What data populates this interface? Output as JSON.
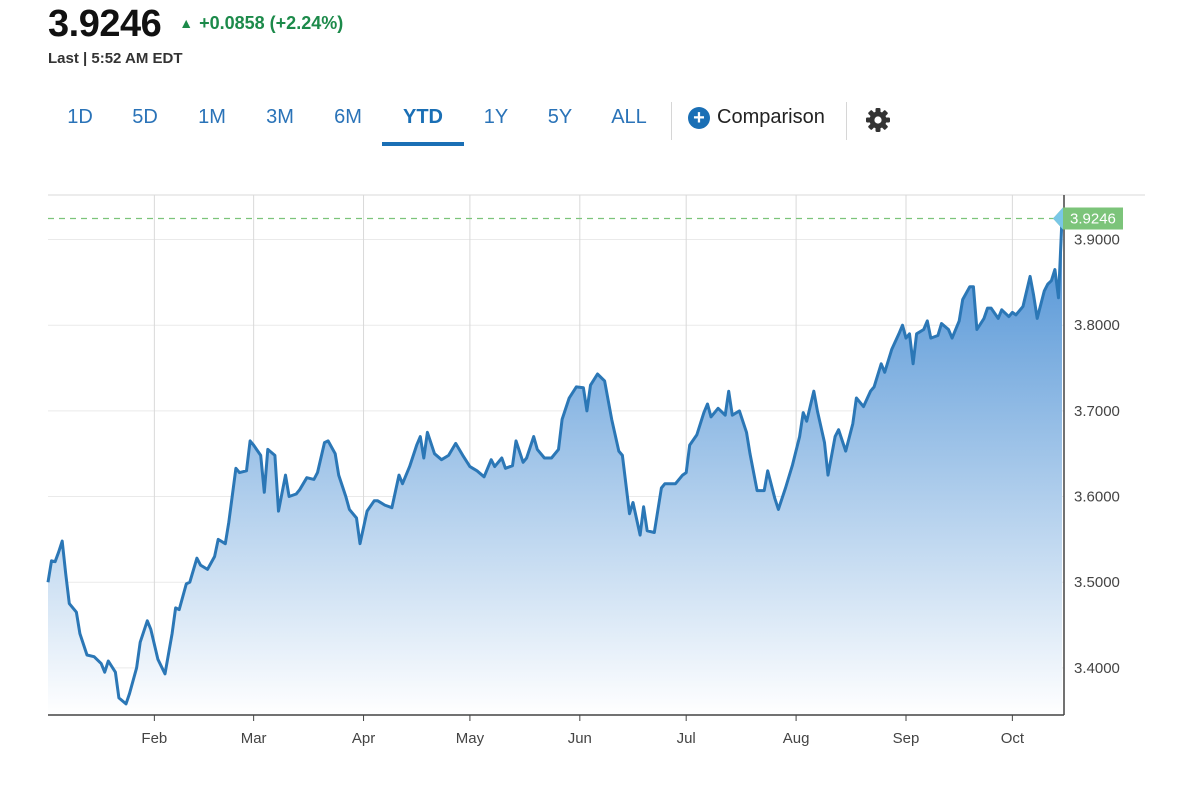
{
  "quote": {
    "price": "3.9246",
    "change": "+0.0858",
    "change_pct": "(+2.24%)",
    "last_label": "Last | 5:52 AM EDT"
  },
  "range_tabs": [
    {
      "label": "1D",
      "active": false
    },
    {
      "label": "5D",
      "active": false
    },
    {
      "label": "1M",
      "active": false
    },
    {
      "label": "3M",
      "active": false
    },
    {
      "label": "6M",
      "active": false
    },
    {
      "label": "YTD",
      "active": true
    },
    {
      "label": "1Y",
      "active": false
    },
    {
      "label": "5Y",
      "active": false
    },
    {
      "label": "ALL",
      "active": false
    }
  ],
  "comparison": {
    "label": "Comparison",
    "icon": "plus-circle-icon"
  },
  "settings": {
    "icon": "gear-icon"
  },
  "colors": {
    "accent": "#1a6fb5",
    "tab_text": "#2a73b8",
    "up_green": "#1c8a4a",
    "line": "#2b77b6",
    "area_top": "#4a8fd4",
    "area_bottom": "#ffffff",
    "last_tag": "#7cc47a",
    "grid": "#d9d9d9"
  },
  "chart_data": {
    "type": "area",
    "title": "",
    "xlabel": "",
    "ylabel": "",
    "ylim": [
      3.345,
      3.952
    ],
    "y_ticks": [
      "3.9000",
      "3.8000",
      "3.7000",
      "3.6000",
      "3.5000",
      "3.4000"
    ],
    "x_ticks": [
      "Feb",
      "Mar",
      "Apr",
      "May",
      "Jun",
      "Jul",
      "Aug",
      "Sep",
      "Oct"
    ],
    "last_value": "3.9246",
    "grid": true,
    "points": [
      [
        "Jan 2",
        3.5
      ],
      [
        "Jan 3",
        3.525
      ],
      [
        "Jan 4",
        3.524
      ],
      [
        "Jan 5",
        3.535
      ],
      [
        "Jan 6",
        3.548
      ],
      [
        "Jan 7",
        3.51
      ],
      [
        "Jan 8",
        3.475
      ],
      [
        "Jan 10",
        3.465
      ],
      [
        "Jan 11",
        3.44
      ],
      [
        "Jan 13",
        3.415
      ],
      [
        "Jan 15",
        3.413
      ],
      [
        "Jan 17",
        3.405
      ],
      [
        "Jan 18",
        3.395
      ],
      [
        "Jan 19",
        3.408
      ],
      [
        "Jan 21",
        3.395
      ],
      [
        "Jan 22",
        3.365
      ],
      [
        "Jan 24",
        3.358
      ],
      [
        "Jan 25",
        3.37
      ],
      [
        "Jan 27",
        3.4
      ],
      [
        "Jan 28",
        3.43
      ],
      [
        "Jan 30",
        3.455
      ],
      [
        "Jan 31",
        3.445
      ],
      [
        "Feb 2",
        3.41
      ],
      [
        "Feb 4",
        3.393
      ],
      [
        "Feb 6",
        3.44
      ],
      [
        "Feb 7",
        3.47
      ],
      [
        "Feb 8",
        3.468
      ],
      [
        "Feb 10",
        3.498
      ],
      [
        "Feb 11",
        3.5
      ],
      [
        "Feb 13",
        3.528
      ],
      [
        "Feb 14",
        3.52
      ],
      [
        "Feb 16",
        3.515
      ],
      [
        "Feb 18",
        3.53
      ],
      [
        "Feb 19",
        3.55
      ],
      [
        "Feb 21",
        3.545
      ],
      [
        "Feb 22",
        3.57
      ],
      [
        "Feb 24",
        3.633
      ],
      [
        "Feb 25",
        3.628
      ],
      [
        "Feb 27",
        3.63
      ],
      [
        "Feb 28",
        3.665
      ],
      [
        "Mar 1",
        3.66
      ],
      [
        "Mar 3",
        3.648
      ],
      [
        "Mar 4",
        3.605
      ],
      [
        "Mar 5",
        3.655
      ],
      [
        "Mar 7",
        3.648
      ],
      [
        "Mar 8",
        3.583
      ],
      [
        "Mar 10",
        3.625
      ],
      [
        "Mar 11",
        3.6
      ],
      [
        "Mar 13",
        3.603
      ],
      [
        "Mar 14",
        3.608
      ],
      [
        "Mar 16",
        3.622
      ],
      [
        "Mar 18",
        3.62
      ],
      [
        "Mar 19",
        3.628
      ],
      [
        "Mar 21",
        3.663
      ],
      [
        "Mar 22",
        3.665
      ],
      [
        "Mar 24",
        3.65
      ],
      [
        "Mar 25",
        3.625
      ],
      [
        "Mar 27",
        3.6
      ],
      [
        "Mar 28",
        3.585
      ],
      [
        "Mar 30",
        3.575
      ],
      [
        "Mar 31",
        3.545
      ],
      [
        "Apr 2",
        3.583
      ],
      [
        "Apr 4",
        3.595
      ],
      [
        "Apr 5",
        3.595
      ],
      [
        "Apr 7",
        3.59
      ],
      [
        "Apr 9",
        3.587
      ],
      [
        "Apr 11",
        3.625
      ],
      [
        "Apr 12",
        3.615
      ],
      [
        "Apr 14",
        3.635
      ],
      [
        "Apr 16",
        3.66
      ],
      [
        "Apr 17",
        3.67
      ],
      [
        "Apr 18",
        3.645
      ],
      [
        "Apr 19",
        3.675
      ],
      [
        "Apr 21",
        3.65
      ],
      [
        "Apr 23",
        3.643
      ],
      [
        "Apr 25",
        3.648
      ],
      [
        "Apr 27",
        3.662
      ],
      [
        "Apr 29",
        3.648
      ],
      [
        "May 1",
        3.635
      ],
      [
        "May 3",
        3.63
      ],
      [
        "May 5",
        3.623
      ],
      [
        "May 7",
        3.643
      ],
      [
        "May 8",
        3.635
      ],
      [
        "May 10",
        3.645
      ],
      [
        "May 11",
        3.633
      ],
      [
        "May 13",
        3.636
      ],
      [
        "May 14",
        3.665
      ],
      [
        "May 16",
        3.64
      ],
      [
        "May 17",
        3.645
      ],
      [
        "May 19",
        3.67
      ],
      [
        "May 20",
        3.655
      ],
      [
        "May 22",
        3.645
      ],
      [
        "May 24",
        3.645
      ],
      [
        "May 26",
        3.655
      ],
      [
        "May 27",
        3.69
      ],
      [
        "May 29",
        3.715
      ],
      [
        "May 31",
        3.728
      ],
      [
        "Jun 2",
        3.727
      ],
      [
        "Jun 3",
        3.7
      ],
      [
        "Jun 4",
        3.73
      ],
      [
        "Jun 6",
        3.743
      ],
      [
        "Jun 8",
        3.735
      ],
      [
        "Jun 10",
        3.69
      ],
      [
        "Jun 12",
        3.653
      ],
      [
        "Jun 13",
        3.648
      ],
      [
        "Jun 15",
        3.58
      ],
      [
        "Jun 16",
        3.593
      ],
      [
        "Jun 18",
        3.555
      ],
      [
        "Jun 19",
        3.588
      ],
      [
        "Jun 20",
        3.56
      ],
      [
        "Jun 22",
        3.558
      ],
      [
        "Jun 24",
        3.61
      ],
      [
        "Jun 25",
        3.615
      ],
      [
        "Jun 27",
        3.615
      ],
      [
        "Jun 28",
        3.615
      ],
      [
        "Jun 30",
        3.625
      ],
      [
        "Jul 1",
        3.628
      ],
      [
        "Jul 2",
        3.66
      ],
      [
        "Jul 4",
        3.672
      ],
      [
        "Jul 6",
        3.698
      ],
      [
        "Jul 7",
        3.708
      ],
      [
        "Jul 8",
        3.693
      ],
      [
        "Jul 10",
        3.703
      ],
      [
        "Jul 12",
        3.695
      ],
      [
        "Jul 13",
        3.723
      ],
      [
        "Jul 14",
        3.695
      ],
      [
        "Jul 16",
        3.7
      ],
      [
        "Jul 18",
        3.675
      ],
      [
        "Jul 19",
        3.65
      ],
      [
        "Jul 21",
        3.607
      ],
      [
        "Jul 23",
        3.607
      ],
      [
        "Jul 24",
        3.63
      ],
      [
        "Jul 26",
        3.598
      ],
      [
        "Jul 27",
        3.585
      ],
      [
        "Jul 29",
        3.61
      ],
      [
        "Jul 31",
        3.637
      ],
      [
        "Aug 2",
        3.67
      ],
      [
        "Aug 3",
        3.698
      ],
      [
        "Aug 4",
        3.688
      ],
      [
        "Aug 6",
        3.723
      ],
      [
        "Aug 7",
        3.7
      ],
      [
        "Aug 9",
        3.663
      ],
      [
        "Aug 10",
        3.625
      ],
      [
        "Aug 12",
        3.67
      ],
      [
        "Aug 13",
        3.678
      ],
      [
        "Aug 15",
        3.653
      ],
      [
        "Aug 17",
        3.685
      ],
      [
        "Aug 18",
        3.715
      ],
      [
        "Aug 20",
        3.705
      ],
      [
        "Aug 22",
        3.723
      ],
      [
        "Aug 23",
        3.728
      ],
      [
        "Aug 25",
        3.755
      ],
      [
        "Aug 26",
        3.745
      ],
      [
        "Aug 28",
        3.772
      ],
      [
        "Aug 30",
        3.79
      ],
      [
        "Aug 31",
        3.8
      ],
      [
        "Sep 1",
        3.785
      ],
      [
        "Sep 2",
        3.79
      ],
      [
        "Sep 3",
        3.755
      ],
      [
        "Sep 4",
        3.79
      ],
      [
        "Sep 6",
        3.795
      ],
      [
        "Sep 7",
        3.805
      ],
      [
        "Sep 8",
        3.785
      ],
      [
        "Sep 10",
        3.788
      ],
      [
        "Sep 11",
        3.802
      ],
      [
        "Sep 13",
        3.795
      ],
      [
        "Sep 14",
        3.785
      ],
      [
        "Sep 16",
        3.805
      ],
      [
        "Sep 17",
        3.83
      ],
      [
        "Sep 19",
        3.845
      ],
      [
        "Sep 20",
        3.845
      ],
      [
        "Sep 21",
        3.795
      ],
      [
        "Sep 23",
        3.808
      ],
      [
        "Sep 24",
        3.82
      ],
      [
        "Sep 25",
        3.82
      ],
      [
        "Sep 27",
        3.808
      ],
      [
        "Sep 28",
        3.818
      ],
      [
        "Sep 30",
        3.81
      ],
      [
        "Oct 1",
        3.815
      ],
      [
        "Oct 2",
        3.812
      ],
      [
        "Oct 4",
        3.822
      ],
      [
        "Oct 6",
        3.857
      ],
      [
        "Oct 7",
        3.835
      ],
      [
        "Oct 8",
        3.808
      ],
      [
        "Oct 10",
        3.84
      ],
      [
        "Oct 11",
        3.848
      ],
      [
        "Oct 12",
        3.852
      ],
      [
        "Oct 13",
        3.865
      ],
      [
        "Oct 14",
        3.832
      ],
      [
        "Oct 15",
        3.9246
      ]
    ]
  }
}
